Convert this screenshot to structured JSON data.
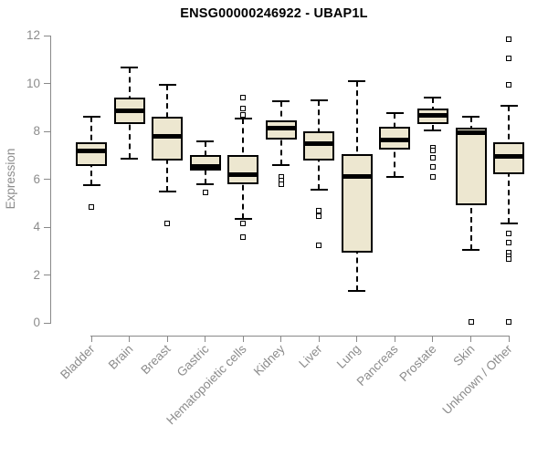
{
  "chart_data": {
    "type": "boxplot",
    "title": "ENSG00000246922 - UBAP1L",
    "ylabel": "Expression",
    "xlabel": "",
    "ylim": [
      0,
      12
    ],
    "yticks": [
      0,
      2,
      4,
      6,
      8,
      10,
      12
    ],
    "grid": false,
    "legend": false,
    "box_fill_color": "#EDE7D0",
    "box_border_color": "#000000",
    "axis_color": "#898989",
    "label_color": "#8C8C8C",
    "categories": [
      "Bladder",
      "Brain",
      "Breast",
      "Gastric",
      "Hematopoietic cells",
      "Kidney",
      "Liver",
      "Lung",
      "Pancreas",
      "Prostate",
      "Skin",
      "Unknown / Other"
    ],
    "series": [
      {
        "category": "Bladder",
        "whisker_low": 5.75,
        "q1": 6.55,
        "median": 7.2,
        "q3": 7.55,
        "whisker_high": 8.6,
        "outliers": [
          4.85
        ]
      },
      {
        "category": "Brain",
        "whisker_low": 6.85,
        "q1": 8.3,
        "median": 8.85,
        "q3": 9.4,
        "whisker_high": 10.65,
        "outliers": []
      },
      {
        "category": "Breast",
        "whisker_low": 5.5,
        "q1": 6.8,
        "median": 7.8,
        "q3": 8.6,
        "whisker_high": 9.95,
        "outliers": [
          4.15
        ]
      },
      {
        "category": "Gastric",
        "whisker_low": 5.8,
        "q1": 6.35,
        "median": 6.55,
        "q3": 7.0,
        "whisker_high": 7.6,
        "outliers": [
          5.45
        ]
      },
      {
        "category": "Hematopoietic cells",
        "whisker_low": 4.35,
        "q1": 5.8,
        "median": 6.2,
        "q3": 7.0,
        "whisker_high": 8.55,
        "outliers": [
          9.4,
          8.95,
          8.7,
          4.15,
          3.6
        ]
      },
      {
        "category": "Kidney",
        "whisker_low": 6.6,
        "q1": 7.65,
        "median": 8.15,
        "q3": 8.45,
        "whisker_high": 9.25,
        "outliers": [
          6.1,
          5.95,
          5.8
        ]
      },
      {
        "category": "Liver",
        "whisker_low": 5.55,
        "q1": 6.8,
        "median": 7.5,
        "q3": 8.0,
        "whisker_high": 9.3,
        "outliers": [
          4.7,
          4.45,
          3.25
        ]
      },
      {
        "category": "Lung",
        "whisker_low": 1.35,
        "q1": 2.95,
        "median": 6.1,
        "q3": 7.05,
        "whisker_high": 10.1,
        "outliers": []
      },
      {
        "category": "Pancreas",
        "whisker_low": 6.1,
        "q1": 7.25,
        "median": 7.65,
        "q3": 8.2,
        "whisker_high": 8.75,
        "outliers": []
      },
      {
        "category": "Prostate",
        "whisker_low": 8.05,
        "q1": 8.3,
        "median": 8.65,
        "q3": 8.95,
        "whisker_high": 9.4,
        "outliers": [
          7.3,
          7.2,
          6.9,
          6.5,
          6.1
        ]
      },
      {
        "category": "Skin",
        "whisker_low": 3.05,
        "q1": 4.9,
        "median": 7.95,
        "q3": 8.15,
        "whisker_high": 8.6,
        "outliers": [
          0.05
        ]
      },
      {
        "category": "Unknown / Other",
        "whisker_low": 4.15,
        "q1": 6.2,
        "median": 6.95,
        "q3": 7.55,
        "whisker_high": 9.05,
        "outliers": [
          11.85,
          11.05,
          9.95,
          3.75,
          3.35,
          2.95,
          2.8,
          2.65,
          0.05
        ]
      }
    ]
  }
}
